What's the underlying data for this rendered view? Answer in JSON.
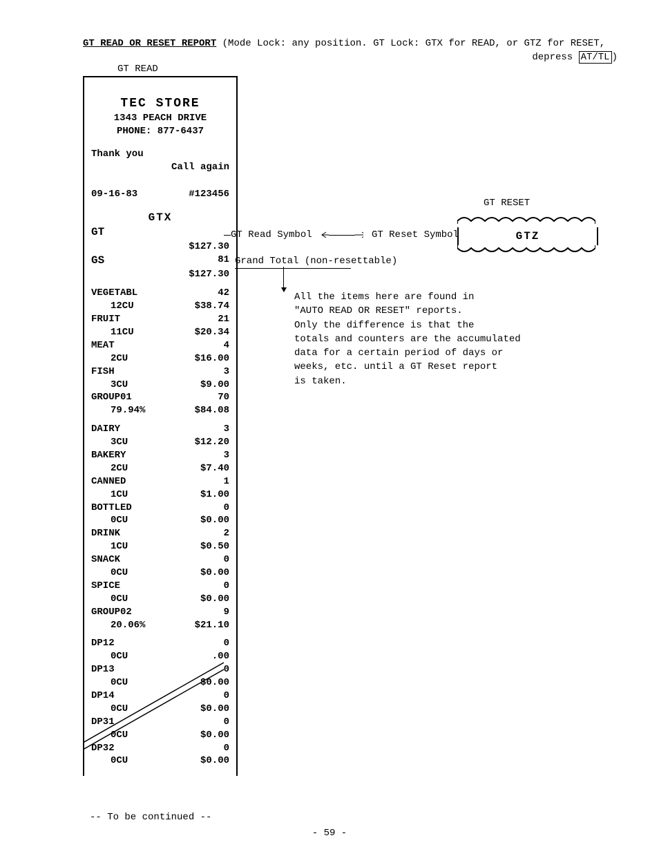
{
  "header": {
    "title_bold": "GT READ OR RESET REPORT",
    "title_rest": " (Mode Lock: any position.  GT Lock: GTX for READ, or GTZ for RESET,",
    "depress_prefix": "depress ",
    "key_label": "AT/TL",
    "depress_suffix": ")"
  },
  "labels": {
    "gt_read": "GT READ",
    "gt_reset": "GT RESET",
    "gtz": "GTZ",
    "gt_read_symbol": "GT Read Symbol",
    "gt_reset_symbol": "GT Reset Symbol",
    "grand_total": "Grand Total (non-resettable)",
    "to_be_continued": "-- To be continued --",
    "page_num": "- 59 -"
  },
  "note_lines": [
    "All the items here are found in",
    "\"AUTO READ OR RESET\" reports.",
    "Only the difference is that the",
    "totals and counters are the accumulated",
    "data for a certain period of days or",
    "weeks, etc. until a GT Reset report",
    "is taken."
  ],
  "receipt": {
    "store_name": "TEC STORE",
    "address": "1343 PEACH DRIVE",
    "phone": "PHONE: 877-6437",
    "thank_you": "Thank you",
    "call_again": "Call again",
    "date": "09-16-83",
    "receipt_no": "#123456",
    "mode": "GTX",
    "gt_label": "GT",
    "gt_amount": "$127.30",
    "gs_label": "GS",
    "gs_count": "81",
    "gs_amount": "$127.30",
    "group1": [
      {
        "name": "VEGETABL",
        "count": "42",
        "cu": "12CU",
        "amount": "$38.74"
      },
      {
        "name": "FRUIT",
        "count": "21",
        "cu": "11CU",
        "amount": "$20.34"
      },
      {
        "name": "MEAT",
        "count": "4",
        "cu": "2CU",
        "amount": "$16.00"
      },
      {
        "name": "FISH",
        "count": "3",
        "cu": "3CU",
        "amount": "$9.00"
      }
    ],
    "group1_summary": {
      "label": "GROUP01",
      "count": "70",
      "pct": "79.94%",
      "amount": "$84.08"
    },
    "group2": [
      {
        "name": "DAIRY",
        "count": "3",
        "cu": "3CU",
        "amount": "$12.20"
      },
      {
        "name": "BAKERY",
        "count": "3",
        "cu": "2CU",
        "amount": "$7.40"
      },
      {
        "name": "CANNED",
        "count": "1",
        "cu": "1CU",
        "amount": "$1.00"
      },
      {
        "name": "BOTTLED",
        "count": "0",
        "cu": "0CU",
        "amount": "$0.00"
      },
      {
        "name": "DRINK",
        "count": "2",
        "cu": "1CU",
        "amount": "$0.50"
      },
      {
        "name": "SNACK",
        "count": "0",
        "cu": "0CU",
        "amount": "$0.00"
      },
      {
        "name": "SPICE",
        "count": "0",
        "cu": "0CU",
        "amount": "$0.00"
      }
    ],
    "group2_summary": {
      "label": "GROUP02",
      "count": "9",
      "pct": "20.06%",
      "amount": "$21.10"
    },
    "dps": [
      {
        "name": "DP12",
        "count": "0",
        "cu": "0CU",
        "amount": ".00"
      },
      {
        "name": "DP13",
        "count": "0",
        "cu": "0CU",
        "amount": "$0.00"
      },
      {
        "name": "DP14",
        "count": "0",
        "cu": "0CU",
        "amount": "$0.00"
      },
      {
        "name": "DP31",
        "count": "0",
        "cu": "0CU",
        "amount": "$0.00"
      },
      {
        "name": "DP32",
        "count": "0",
        "cu": "0CU",
        "amount": "$0.00"
      }
    ]
  }
}
